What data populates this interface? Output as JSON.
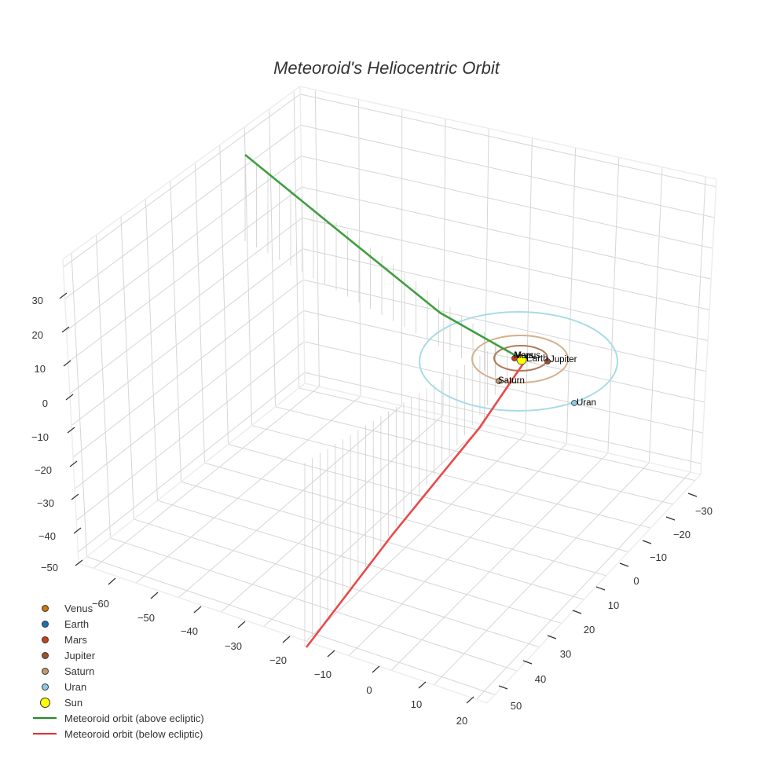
{
  "chart_data": {
    "type": "scatter3d",
    "title": "Meteoroid's Heliocentric Orbit",
    "axes": {
      "x": {
        "ticks": [
          -60,
          -50,
          -40,
          -30,
          -20,
          -10,
          0,
          10,
          20
        ],
        "range": [
          -65,
          25
        ]
      },
      "y": {
        "ticks": [
          -30,
          -20,
          -10,
          0,
          10,
          20,
          30,
          40,
          50
        ],
        "range": [
          -35,
          55
        ]
      },
      "z": {
        "ticks": [
          -50,
          -40,
          -30,
          -20,
          -10,
          0,
          10,
          20,
          30
        ],
        "range": [
          -52,
          40
        ]
      }
    },
    "grid": true,
    "legend_position": "bottom-left",
    "series": [
      {
        "name": "Venus",
        "type": "marker",
        "color": "#c9780c"
      },
      {
        "name": "Earth",
        "type": "marker",
        "color": "#1f6fb4"
      },
      {
        "name": "Mars",
        "type": "marker",
        "color": "#c8401a"
      },
      {
        "name": "Jupiter",
        "type": "marker",
        "color": "#a0522d"
      },
      {
        "name": "Saturn",
        "type": "marker",
        "color": "#c49a6c"
      },
      {
        "name": "Uran",
        "type": "marker",
        "color": "#8ecae6"
      },
      {
        "name": "Sun",
        "type": "marker",
        "color": "#ffff00"
      },
      {
        "name": "Meteoroid orbit (above ecliptic)",
        "type": "line",
        "color": "#2e9a2e"
      },
      {
        "name": "Meteoroid orbit (below ecliptic)",
        "type": "line",
        "color": "#e63b3b"
      }
    ],
    "orbits": [
      {
        "name": "Jupiter orbit",
        "color": "#b07a5a"
      },
      {
        "name": "Saturn orbit",
        "color": "#d4b08c"
      },
      {
        "name": "Uran orbit",
        "color": "#a8dbe8"
      }
    ],
    "point_labels": [
      "Venus",
      "Earth",
      "Mars",
      "Jupiter",
      "Saturn",
      "Uran"
    ]
  },
  "title": "Meteoroid's Heliocentric Orbit",
  "legend": {
    "items": [
      {
        "label": "Venus",
        "color": "#c9780c",
        "kind": "dot",
        "size": 9
      },
      {
        "label": "Earth",
        "color": "#1f6fb4",
        "kind": "dot",
        "size": 9
      },
      {
        "label": "Mars",
        "color": "#c8401a",
        "kind": "dot",
        "size": 9
      },
      {
        "label": "Jupiter",
        "color": "#a0522d",
        "kind": "dot",
        "size": 9
      },
      {
        "label": "Saturn",
        "color": "#c49a6c",
        "kind": "dot",
        "size": 9
      },
      {
        "label": "Uran",
        "color": "#8ecae6",
        "kind": "dot",
        "size": 9
      },
      {
        "label": "Sun",
        "color": "#ffff00",
        "kind": "dot",
        "size": 13
      },
      {
        "label": "Meteoroid orbit (above ecliptic)",
        "color": "#1e8c1e",
        "kind": "line"
      },
      {
        "label": "Meteoroid orbit (below ecliptic)",
        "color": "#e62e2e",
        "kind": "line"
      }
    ]
  },
  "labels": {
    "venus": "Venus",
    "earth": "Earth",
    "mars": "Mars",
    "jupiter": "Jupiter",
    "saturn": "Saturn",
    "uran": "Uran"
  },
  "ticks": {
    "z": [
      "30",
      "20",
      "10",
      "0",
      "−10",
      "−20",
      "−30",
      "−40",
      "−50"
    ],
    "x": [
      "−60",
      "−50",
      "−40",
      "−30",
      "−20",
      "−10",
      "0",
      "10",
      "20"
    ],
    "y": [
      "−30",
      "−20",
      "−10",
      "0",
      "10",
      "20",
      "30",
      "40",
      "50"
    ]
  }
}
